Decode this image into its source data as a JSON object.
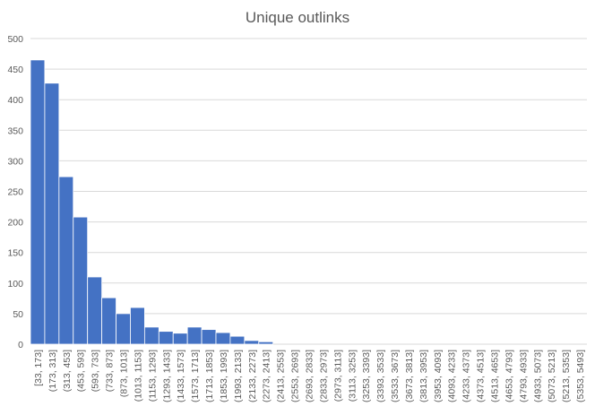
{
  "chart_data": {
    "type": "bar",
    "title": "Unique outlinks",
    "categories": [
      "[33, 173]",
      "(173, 313]",
      "(313, 453]",
      "(453, 593]",
      "(593, 733]",
      "(733, 873]",
      "(873, 1013]",
      "(1013, 1153]",
      "(1153, 1293]",
      "(1293, 1433]",
      "(1433, 1573]",
      "(1573, 1713]",
      "(1713, 1853]",
      "(1853, 1993]",
      "(1993, 2133]",
      "(2133, 2273]",
      "(2273, 2413]",
      "(2413, 2553]",
      "(2553, 2693]",
      "(2693, 2833]",
      "(2833, 2973]",
      "(2973, 3113]",
      "(3113, 3253]",
      "(3253, 3393]",
      "(3393, 3533]",
      "(3533, 3673]",
      "(3673, 3813]",
      "(3813, 3953]",
      "(3953, 4093]",
      "(4093, 4233]",
      "(4233, 4373]",
      "(4373, 4513]",
      "(4513, 4653]",
      "(4653, 4793]",
      "(4793, 4933]",
      "(4933, 5073]",
      "(5073, 5213]",
      "(5213, 5353]",
      "(5353, 5493]"
    ],
    "values": [
      465,
      427,
      274,
      208,
      110,
      76,
      50,
      60,
      28,
      21,
      18,
      28,
      24,
      19,
      13,
      6,
      4,
      0,
      0,
      0,
      0,
      0,
      0,
      0,
      0,
      0,
      0,
      0,
      0,
      0,
      0,
      0,
      0,
      0,
      0,
      0,
      0,
      0,
      0
    ],
    "color": "#4472c4",
    "ylim": [
      0,
      500
    ],
    "yticks": [
      0,
      50,
      100,
      150,
      200,
      250,
      300,
      350,
      400,
      450,
      500
    ],
    "grid": true
  }
}
